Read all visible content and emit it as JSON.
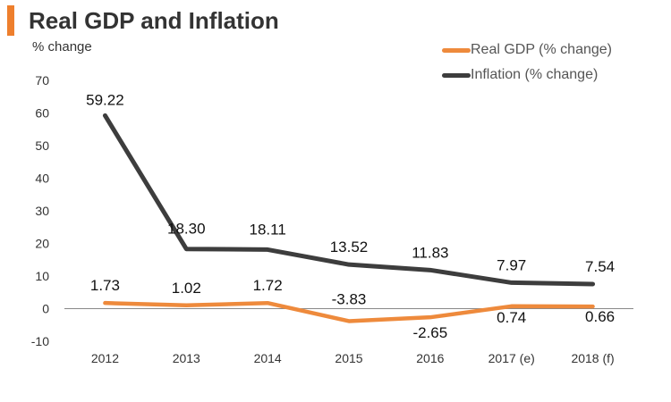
{
  "header": {
    "title": "Real GDP and Inflation",
    "unit_label": "% change",
    "accent_color": "#EE7F2D"
  },
  "chart_data": {
    "type": "line",
    "title": "Real GDP and Inflation",
    "ylabel": "% change",
    "xlabel": "",
    "categories": [
      "2012",
      "2013",
      "2014",
      "2015",
      "2016",
      "2017 (e)",
      "2018 (f)"
    ],
    "ylim": [
      -10,
      70
    ],
    "yticks": [
      -10,
      0,
      10,
      20,
      30,
      40,
      50,
      60,
      70
    ],
    "legend_position": "top-right",
    "series": [
      {
        "name": "Real GDP (% change)",
        "color": "#EE8A3C",
        "values": [
          1.73,
          1.02,
          1.72,
          -3.83,
          -2.65,
          0.74,
          0.66
        ],
        "labels": [
          "1.73",
          "1.02",
          "1.72",
          "-3.83",
          "-2.65",
          "0.74",
          "0.66"
        ]
      },
      {
        "name": "Inflation (% change)",
        "color": "#3D3D3D",
        "values": [
          59.22,
          18.3,
          18.11,
          13.52,
          11.83,
          7.97,
          7.54
        ],
        "labels": [
          "59.22",
          "18.30",
          "18.11",
          "13.52",
          "11.83",
          "7.97",
          "7.54"
        ]
      }
    ]
  }
}
